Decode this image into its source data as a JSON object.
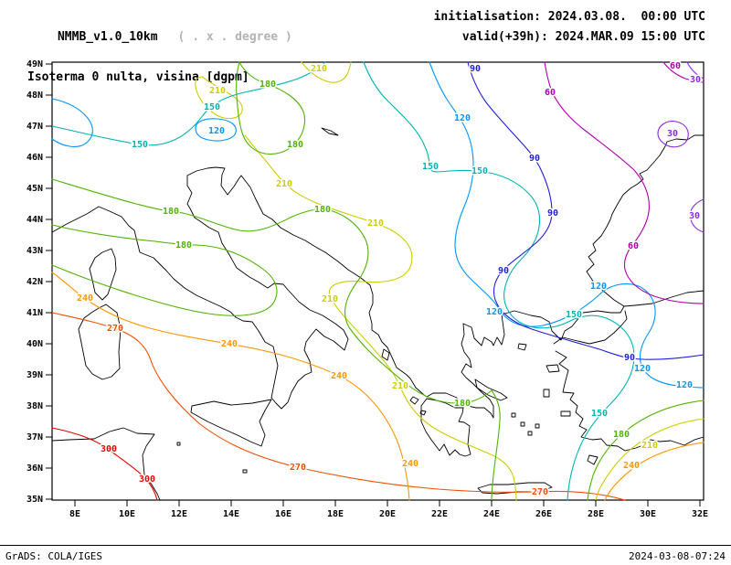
{
  "header": {
    "title": "NMMB_v1.0_10km",
    "title_note": "( . x . degree )",
    "subtitle": "Isoterma 0 nulta, visina [dgpm]",
    "init": "initialisation: 2024.03.08.  00:00 UTC",
    "valid": "valid(+39h): 2024.MAR.09 15:00 UTC"
  },
  "footer": {
    "left": "GrADS: COLA/IGES",
    "right": "2024-03-08-07:24"
  },
  "map": {
    "lat_labels": [
      "49N",
      "48N",
      "47N",
      "46N",
      "45N",
      "44N",
      "43N",
      "42N",
      "41N",
      "40N",
      "39N",
      "38N",
      "37N",
      "36N",
      "35N"
    ],
    "lon_labels": [
      "8E",
      "10E",
      "12E",
      "14E",
      "16E",
      "18E",
      "20E",
      "22E",
      "24E",
      "26E",
      "28E",
      "30E",
      "32E"
    ],
    "levels": [
      {
        "value": 30,
        "color": "#8a2be2"
      },
      {
        "value": 60,
        "color": "#b000b0"
      },
      {
        "value": 90,
        "color": "#2020dc"
      },
      {
        "value": 120,
        "color": "#0096ff"
      },
      {
        "value": 150,
        "color": "#00b4b4"
      },
      {
        "value": 180,
        "color": "#50b400"
      },
      {
        "value": 210,
        "color": "#cdcd00"
      },
      {
        "value": 240,
        "color": "#ff9600"
      },
      {
        "value": 270,
        "color": "#f05000"
      },
      {
        "value": 300,
        "color": "#e60000"
      }
    ],
    "contour_labels": [
      [
        30,
        761,
        87
      ],
      [
        30,
        736,
        146
      ],
      [
        30,
        760,
        236
      ],
      [
        60,
        739,
        72
      ],
      [
        60,
        602,
        101
      ],
      [
        60,
        693,
        269
      ],
      [
        90,
        520,
        75
      ],
      [
        90,
        585,
        173
      ],
      [
        90,
        605,
        233
      ],
      [
        90,
        551,
        296
      ],
      [
        90,
        689,
        391
      ],
      [
        120,
        506,
        129
      ],
      [
        120,
        237,
        143
      ],
      [
        120,
        541,
        341
      ],
      [
        120,
        655,
        313
      ],
      [
        120,
        703,
        403
      ],
      [
        120,
        749,
        421
      ],
      [
        150,
        232,
        117
      ],
      [
        150,
        153,
        158
      ],
      [
        150,
        471,
        182
      ],
      [
        150,
        525,
        187
      ],
      [
        150,
        628,
        344
      ],
      [
        150,
        656,
        452
      ],
      [
        180,
        293,
        92
      ],
      [
        180,
        323,
        158
      ],
      [
        180,
        187,
        231
      ],
      [
        180,
        353,
        229
      ],
      [
        180,
        201,
        268
      ],
      [
        180,
        506,
        441
      ],
      [
        180,
        680,
        475
      ],
      [
        210,
        349,
        75
      ],
      [
        210,
        238,
        99
      ],
      [
        210,
        311,
        201
      ],
      [
        210,
        411,
        244
      ],
      [
        210,
        361,
        327
      ],
      [
        210,
        438,
        422
      ],
      [
        210,
        711,
        487
      ],
      [
        240,
        93,
        326
      ],
      [
        240,
        251,
        376
      ],
      [
        240,
        371,
        411
      ],
      [
        240,
        449,
        507
      ],
      [
        240,
        691,
        509
      ],
      [
        270,
        126,
        359
      ],
      [
        270,
        326,
        511
      ],
      [
        270,
        591,
        538
      ],
      [
        300,
        119,
        491
      ],
      [
        300,
        161,
        524
      ]
    ]
  },
  "chart_data": {
    "type": "contour-map",
    "title": "Isoterma 0 nulta, visina [dgpm]",
    "model": "NMMB_v1.0_10km",
    "initialisation": "2024.03.08. 00:00 UTC",
    "valid": "2024.MAR.09 15:00 UTC (+39h)",
    "units": "dgpm",
    "lat_range": [
      "35N",
      "49N"
    ],
    "lon_range": [
      "8E",
      "32E"
    ],
    "contour_interval": 30,
    "contour_levels": [
      30,
      60,
      90,
      120,
      150,
      180,
      210,
      240,
      270,
      300
    ],
    "pattern": "values decrease toward northeast (30 dgpm) and increase toward southwest (300 dgpm)"
  }
}
